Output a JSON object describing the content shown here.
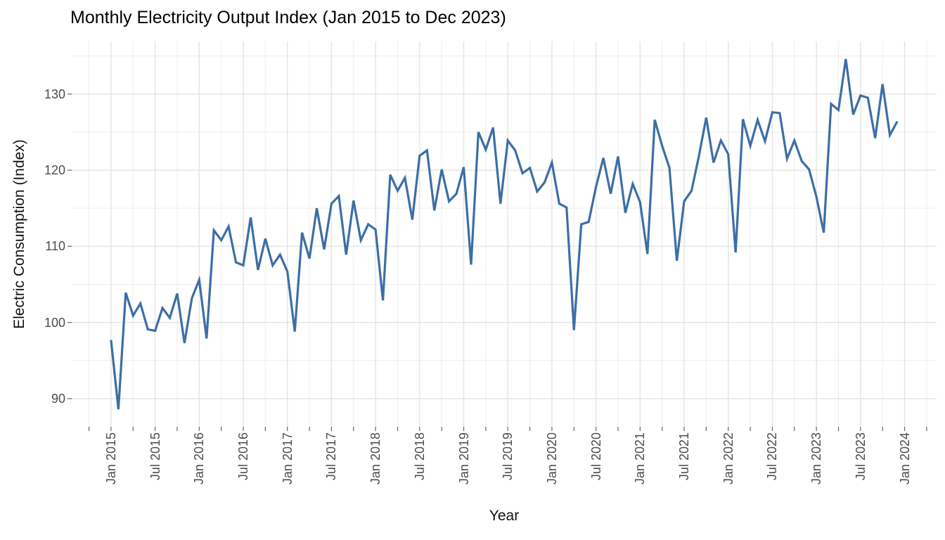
{
  "chart_data": {
    "type": "line",
    "title": "Monthly Electricity Output Index (Jan 2015 to Dec 2023)",
    "xlabel": "Year",
    "ylabel": "Electric Consumption (Index)",
    "legend": "none",
    "grid": "on",
    "background": "#ffffff",
    "major_grid_color": "#e4e4e4",
    "minor_grid_color": "#ededed",
    "tick_mark_color": "#666666",
    "ylim": [
      86.3,
      136.9
    ],
    "y_ticks": [
      90,
      100,
      110,
      120,
      130
    ],
    "y_minor_ticks": [
      95,
      105,
      115,
      125,
      135
    ],
    "x_tick_labels": [
      "Jan 2015",
      "Jul 2015",
      "Jan 2016",
      "Jul 2016",
      "Jan 2017",
      "Jul 2017",
      "Jan 2018",
      "Jul 2018",
      "Jan 2019",
      "Jul 2019",
      "Jan 2020",
      "Jul 2020",
      "Jan 2021",
      "Jul 2021",
      "Jan 2022",
      "Jul 2022",
      "Jan 2023",
      "Jul 2023",
      "Jan 2024"
    ],
    "x_tick_months": [
      0,
      6,
      12,
      18,
      24,
      30,
      36,
      42,
      48,
      54,
      60,
      66,
      72,
      78,
      84,
      90,
      96,
      102,
      108
    ],
    "x_minor_months": [
      -3,
      3,
      9,
      15,
      21,
      27,
      33,
      39,
      45,
      51,
      57,
      63,
      69,
      75,
      81,
      87,
      93,
      99,
      105,
      111
    ],
    "series": [
      {
        "name": "Electricity Output Index",
        "color": "#3d6ea6",
        "stroke_width": 3.2,
        "frequency": "monthly",
        "start": "Jan 2015",
        "end": "Dec 2023",
        "values_by_year": [
          {
            "year": 2015,
            "values": [
              97.7,
              88.6,
              103.9,
              100.9,
              102.5,
              99.1,
              98.9,
              101.9,
              100.6,
              103.8,
              97.3,
              103.2
            ]
          },
          {
            "year": 2016,
            "values": [
              105.6,
              97.9,
              112.1,
              110.8,
              112.6,
              107.9,
              107.5,
              113.8,
              106.9,
              111.0,
              107.5,
              108.9
            ]
          },
          {
            "year": 2017,
            "values": [
              106.7,
              98.8,
              111.8,
              108.4,
              115.0,
              109.6,
              115.6,
              116.6,
              108.9,
              116.0,
              110.8,
              112.9
            ]
          },
          {
            "year": 2018,
            "values": [
              112.2,
              102.9,
              119.4,
              117.3,
              119.0,
              113.5,
              121.9,
              122.6,
              114.7,
              120.1,
              115.9,
              116.9
            ]
          },
          {
            "year": 2019,
            "values": [
              120.4,
              107.6,
              125.0,
              122.7,
              125.6,
              115.6,
              123.9,
              122.6,
              119.6,
              120.3,
              117.2,
              118.4
            ]
          },
          {
            "year": 2020,
            "values": [
              121.0,
              115.6,
              115.1,
              99.0,
              112.9,
              113.2,
              117.8,
              121.6,
              116.9,
              121.8,
              114.4,
              118.2
            ]
          },
          {
            "year": 2021,
            "values": [
              115.8,
              109.0,
              126.6,
              123.2,
              120.3,
              108.1,
              115.9,
              117.3,
              121.8,
              126.9,
              121.0,
              123.9
            ]
          },
          {
            "year": 2022,
            "values": [
              122.1,
              109.2,
              126.7,
              123.2,
              126.6,
              123.8,
              127.6,
              127.5,
              121.5,
              123.9,
              121.2,
              120.1
            ]
          },
          {
            "year": 2023,
            "values": [
              116.5,
              111.8,
              128.7,
              127.9,
              134.6,
              127.3,
              129.8,
              129.5,
              124.2,
              131.3,
              124.6,
              126.4
            ]
          }
        ]
      }
    ]
  }
}
